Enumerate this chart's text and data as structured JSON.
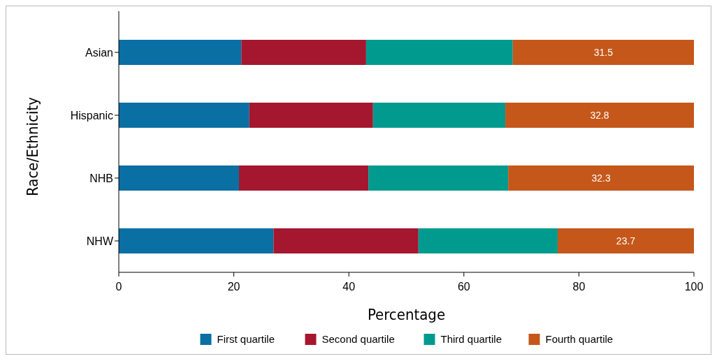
{
  "chart_data": {
    "type": "bar",
    "orientation": "horizontal",
    "stacked": true,
    "xlabel": "Percentage",
    "ylabel": "Race/Ethnicity",
    "categories": [
      "Asian",
      "Hispanic",
      "NHB",
      "NHW"
    ],
    "series": [
      {
        "name": "First quartile",
        "color": "#0a6fa3",
        "values": [
          21.3,
          22.7,
          20.9,
          26.9
        ]
      },
      {
        "name": "Second quartile",
        "color": "#a5172f",
        "values": [
          21.7,
          21.5,
          22.5,
          25.2
        ]
      },
      {
        "name": "Third quartile",
        "color": "#009a8f",
        "values": [
          25.5,
          23.0,
          24.3,
          24.2
        ]
      },
      {
        "name": "Fourth quartile",
        "color": "#c5571a",
        "values": [
          31.5,
          32.8,
          32.3,
          23.7
        ],
        "value_labels": [
          "31.5",
          "32.8",
          "32.3",
          "23.7"
        ]
      }
    ],
    "xlim": [
      0,
      100
    ],
    "xticks": [
      0,
      20,
      40,
      60,
      80,
      100
    ],
    "grid": false,
    "legend": "bottom"
  }
}
